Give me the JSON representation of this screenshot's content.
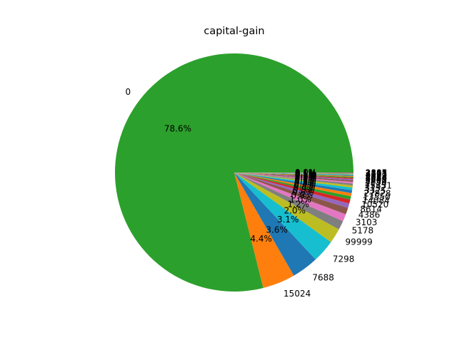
{
  "chart_data": {
    "type": "pie",
    "title": "capital-gain",
    "start_angle_deg": 0,
    "direction": "counterclockwise",
    "slices": [
      {
        "label": "0",
        "value": 78.6,
        "pct_label": "78.6%",
        "color": "#2ca02c"
      },
      {
        "label": "15024",
        "value": 4.4,
        "pct_label": "4.4%",
        "color": "#ff7f0e"
      },
      {
        "label": "7688",
        "value": 3.6,
        "pct_label": "3.6%",
        "color": "#1f77b4"
      },
      {
        "label": "7298",
        "value": 3.1,
        "pct_label": "3.1%",
        "color": "#17becf"
      },
      {
        "label": "99999",
        "value": 2.0,
        "pct_label": "2.0%",
        "color": "#bcbd22"
      },
      {
        "label": "5178",
        "value": 1.2,
        "pct_label": "1.2%",
        "color": "#7f7f7f"
      },
      {
        "label": "3103",
        "value": 1.0,
        "pct_label": "1.0%",
        "color": "#e377c2"
      },
      {
        "label": "4386",
        "value": 0.9,
        "pct_label": "0.9%",
        "color": "#8c564b"
      },
      {
        "label": "8614",
        "value": 0.6,
        "pct_label": "0.6%",
        "color": "#9467bd"
      },
      {
        "label": "10520",
        "value": 0.55,
        "pct_label": "0.5%",
        "color": "#d62728"
      },
      {
        "label": "14084",
        "value": 0.45,
        "pct_label": "0.4%",
        "color": "#2ca02c"
      },
      {
        "label": "13550",
        "value": 0.42,
        "pct_label": "0.4%",
        "color": "#ff7f0e"
      },
      {
        "label": "27828",
        "value": 0.4,
        "pct_label": "0.4%",
        "color": "#1f77b4"
      },
      {
        "label": "3325",
        "value": 0.35,
        "pct_label": "0.3%",
        "color": "#17becf"
      },
      {
        "label": "3137",
        "value": 0.3,
        "pct_label": "0.3%",
        "color": "#bcbd22"
      },
      {
        "label": "15831",
        "value": 0.25,
        "pct_label": "0.2%",
        "color": "#7f7f7f"
      },
      {
        "label": "2174",
        "value": 0.22,
        "pct_label": "0.2%",
        "color": "#e377c2"
      },
      {
        "label": "4650",
        "value": 0.2,
        "pct_label": "0.2%",
        "color": "#8c564b"
      },
      {
        "label": "3908",
        "value": 0.18,
        "pct_label": "0.2%",
        "color": "#9467bd"
      },
      {
        "label": "6849",
        "value": 0.16,
        "pct_label": "0.2%",
        "color": "#d62728"
      },
      {
        "label": "4064",
        "value": 0.14,
        "pct_label": "0.1%",
        "color": "#2ca02c"
      },
      {
        "label": "5013",
        "value": 0.12,
        "pct_label": "0.1%",
        "color": "#ff7f0e"
      },
      {
        "label": "2829",
        "value": 0.1,
        "pct_label": "0.1%",
        "color": "#1f77b4"
      },
      {
        "label": "4787",
        "value": 0.09,
        "pct_label": "0.1%",
        "color": "#17becf"
      },
      {
        "label": "4101",
        "value": 0.08,
        "pct_label": "0.1%",
        "color": "#bcbd22"
      },
      {
        "label": "2597",
        "value": 0.07,
        "pct_label": "0.1%",
        "color": "#7f7f7f"
      },
      {
        "label": "3411",
        "value": 0.06,
        "pct_label": "0.1%",
        "color": "#e377c2"
      },
      {
        "label": "2885",
        "value": 0.05,
        "pct_label": "0.0%",
        "color": "#8c564b"
      }
    ]
  }
}
